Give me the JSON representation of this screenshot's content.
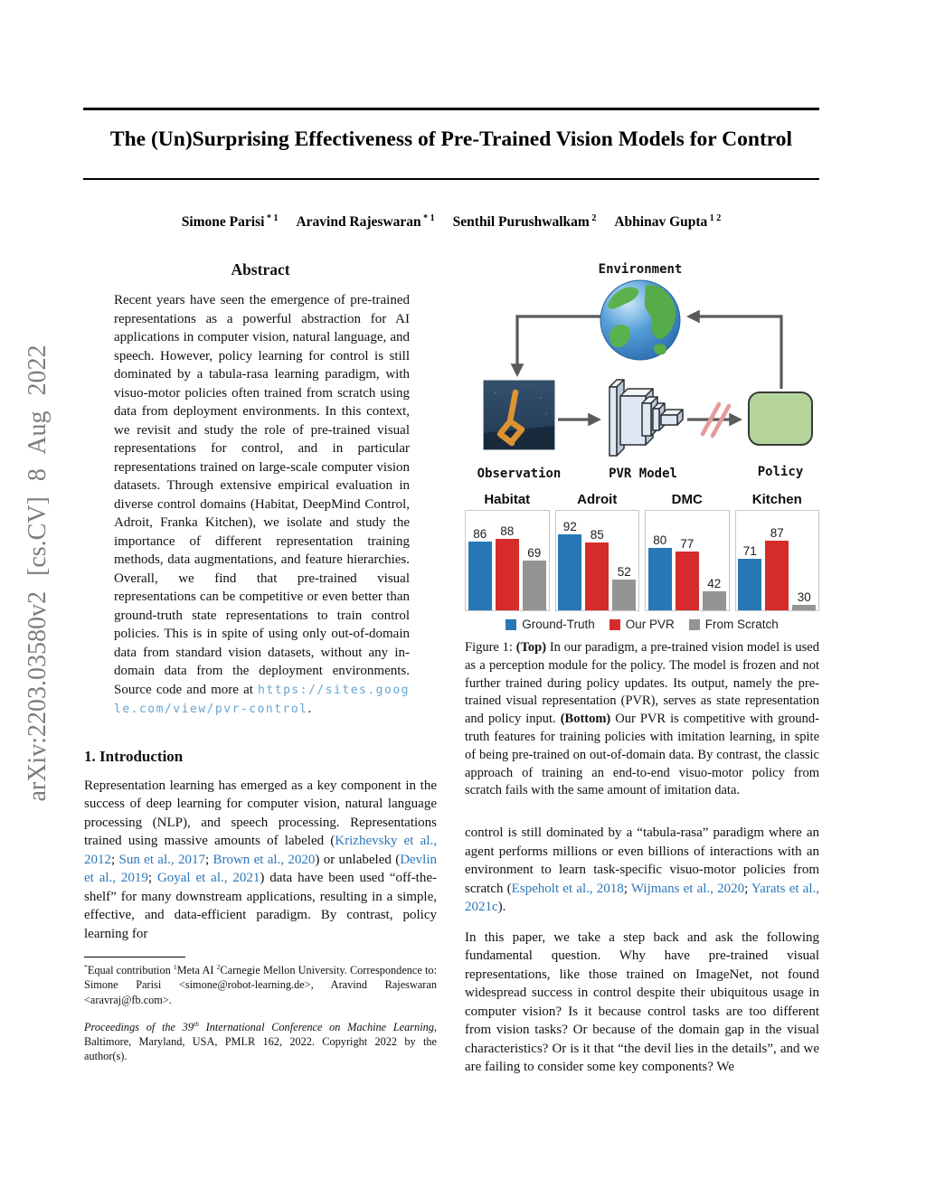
{
  "arxiv_sidebar": "arXiv:2203.03580v2 [cs.CV] 8 Aug 2022",
  "title": "The (Un)Surprising Effectiveness of Pre-Trained Vision Models for Control",
  "authors": [
    {
      "name": "Simone Parisi",
      "sup": "* 1"
    },
    {
      "name": "Aravind Rajeswaran",
      "sup": "* 1"
    },
    {
      "name": "Senthil Purushwalkam",
      "sup": "2"
    },
    {
      "name": "Abhinav Gupta",
      "sup": "1 2"
    }
  ],
  "abstract": {
    "heading": "Abstract",
    "segments": [
      {
        "t": "Recent years have seen the emergence of pre-trained representations as a powerful abstraction for AI applications in computer vision, natural language, and speech. However, policy learning for control is still dominated by a tabula-rasa learning paradigm, with visuo-motor policies often trained from scratch using data from deployment environments. In this context, we revisit and study the role of pre-trained visual representations for control, and in particular representations trained on large-scale computer vision datasets. Through extensive empirical evaluation in diverse control domains (Habitat, DeepMind Control, Adroit, Franka Kitchen), we isolate and study the importance of different representation training methods, data augmentations, and feature hierarchies. Overall, we find that pre-trained visual representations can be competitive or even better than ground-truth state representations to train control policies. This is in spite of using only out-of-domain data from standard vision datasets, without any in-domain data from the deployment environments. Source code and more at "
      },
      {
        "t": "https://sites.google.com/view/pvr-control",
        "style": "mono-link"
      },
      {
        "t": "."
      }
    ]
  },
  "figure": {
    "diagram": {
      "environment_label": "Environment",
      "observation_label": "Observation",
      "pvr_label": "PVR Model",
      "policy_label": "Policy"
    },
    "chart_data": {
      "type": "bar",
      "groups": [
        "Habitat",
        "Adroit",
        "DMC",
        "Kitchen"
      ],
      "series": [
        {
          "name": "Ground-Truth",
          "color": "#2878b5",
          "values": [
            86,
            92,
            80,
            71
          ]
        },
        {
          "name": "Our PVR",
          "color": "#d62b2b",
          "values": [
            88,
            85,
            77,
            87
          ]
        },
        {
          "name": "From Scratch",
          "color": "#949494",
          "values": [
            69,
            52,
            42,
            30
          ]
        }
      ],
      "ylim": [
        0,
        100
      ],
      "ylim_render": [
        25,
        110
      ],
      "legend_position": "bottom",
      "grid": false
    },
    "caption_segments": [
      {
        "t": "Figure 1:  "
      },
      {
        "t": "(Top)",
        "style": "bold"
      },
      {
        "t": " In our paradigm, a pre-trained vision model is used as a perception module for the policy. The model is frozen and not further trained during policy updates. Its output, namely the pre-trained visual representation (PVR), serves as state representation and policy input. "
      },
      {
        "t": "(Bottom)",
        "style": "bold"
      },
      {
        "t": " Our PVR is competitive with ground-truth features for training policies with imitation learning, in spite of being pre-trained on out-of-domain data. By contrast, the classic approach of training an end-to-end visuo-motor policy from scratch fails with the same amount of imitation data."
      }
    ]
  },
  "intro": {
    "heading": "1. Introduction",
    "para_segments": [
      {
        "t": "Representation learning has emerged as a key component in the success of deep learning for computer vision, natural language processing (NLP), and speech processing. Representations trained using massive amounts of labeled ("
      },
      {
        "t": "Krizhevsky et al., 2012",
        "style": "link"
      },
      {
        "t": "; "
      },
      {
        "t": "Sun et al., 2017",
        "style": "link"
      },
      {
        "t": "; "
      },
      {
        "t": "Brown et al., 2020",
        "style": "link"
      },
      {
        "t": ") or unlabeled ("
      },
      {
        "t": "Devlin et al., 2019",
        "style": "link"
      },
      {
        "t": "; "
      },
      {
        "t": "Goyal et al., 2021",
        "style": "link"
      },
      {
        "t": ") data have been used “off-the-shelf” for many downstream applications, resulting in a simple, effective, and data-efficient paradigm. By contrast, policy learning for"
      }
    ]
  },
  "right_col": {
    "para1_segments": [
      {
        "t": "control is still dominated by a “tabula-rasa” paradigm where an agent performs millions or even billions of interactions with an environment to learn task-specific visuo-motor policies from scratch ("
      },
      {
        "t": "Espeholt et al., 2018",
        "style": "link"
      },
      {
        "t": "; "
      },
      {
        "t": "Wijmans et al., 2020",
        "style": "link"
      },
      {
        "t": "; "
      },
      {
        "t": "Yarats et al., 2021c",
        "style": "link"
      },
      {
        "t": ")."
      }
    ],
    "para2": "In this paper, we take a step back and ask the following fundamental question. Why have pre-trained visual representations, like those trained on ImageNet, not found widespread success in control despite their ubiquitous usage in computer vision? Is it because control tasks are too different from vision tasks? Or because of the domain gap in the visual characteristics? Or is it that “the devil lies in the details”, and we are failing to consider some key components? We"
  },
  "footnotes": {
    "fn1_segments": [
      {
        "t": "*",
        "style": "sup"
      },
      {
        "t": "Equal contribution  "
      },
      {
        "t": "1",
        "style": "sup"
      },
      {
        "t": "Meta AI "
      },
      {
        "t": "2",
        "style": "sup"
      },
      {
        "t": "Carnegie Mellon University. Correspondence to: Simone Parisi <simone@robot-learning.de>, Aravind Rajeswaran <aravraj@fb.com>."
      }
    ],
    "fn2_segments": [
      {
        "t": "Proceedings of the 39",
        "style": "italic"
      },
      {
        "t": "th",
        "style": "sup-italic"
      },
      {
        "t": " International Conference on Machine Learning",
        "style": "italic"
      },
      {
        "t": ", Baltimore, Maryland, USA, PMLR 162, 2022. Copyright 2022 by the author(s)."
      }
    ]
  },
  "colors": {
    "citation_link_blue": "#2c77b8",
    "url_link_blue": "#63a6d2",
    "sidebar_gray": "#7d7d7d",
    "policy_box_green": "#b5d49c",
    "frozen_slash_pink": "#e59a9a",
    "arrow_gray": "#5a5a5a"
  }
}
